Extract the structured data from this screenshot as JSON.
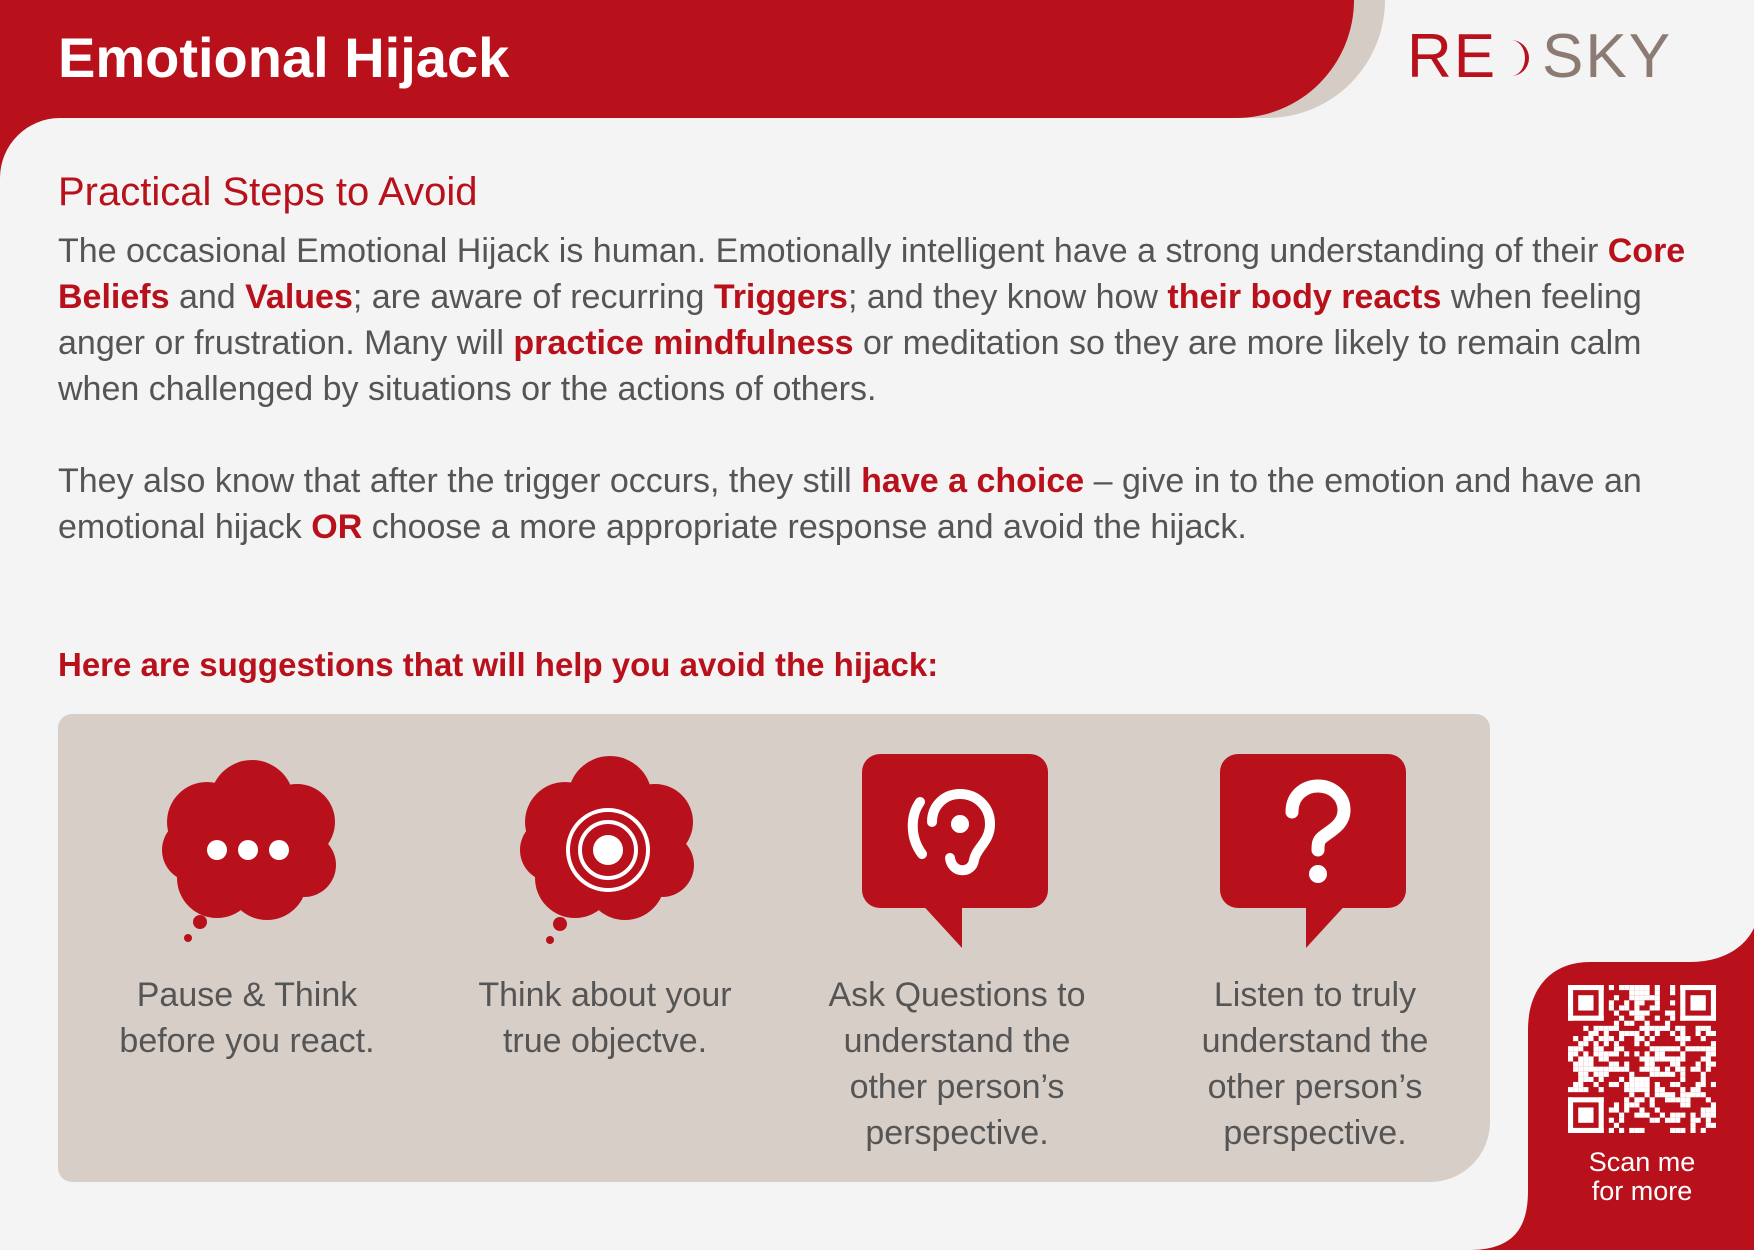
{
  "header": {
    "title": "Emotional Hijack",
    "logo": {
      "part_red": "RE",
      "part_grey": "SKY"
    }
  },
  "section": {
    "title": "Practical Steps to Avoid"
  },
  "paragraph1": {
    "t1": "The occasional Emotional Hijack is human. Emotionally intelligent have a strong understanding of their ",
    "h1": "Core Beliefs",
    "t2": " and ",
    "h2": "Values",
    "t3": "; are aware of recurring ",
    "h3": "Triggers",
    "t4": "; and they know how ",
    "h4": "their body reacts",
    "t5": " when feeling anger or frustration. Many will ",
    "h5": "practice mindfulness",
    "t6": " or meditation so they are more likely to remain calm when challenged by situations or the actions of others."
  },
  "paragraph2": {
    "t1": "They also know that after the trigger occurs, they still ",
    "h1": "have a choice",
    "t2": " – give in to the emotion and have an emotional hijack ",
    "h2": "OR",
    "t3": " choose a more appropriate response and avoid the hijack."
  },
  "suggestions": {
    "heading": "Here are suggestions that will help you avoid the hijack:",
    "items": [
      {
        "icon": "thought-bubble-dots-icon",
        "label_line1": "Pause & Think",
        "label_line2": "before you react."
      },
      {
        "icon": "thought-bubble-target-icon",
        "label_line1": "Think about your",
        "label_line2": "true objectve."
      },
      {
        "icon": "speech-bubble-ear-icon",
        "label_line1": "Ask Questions to",
        "label_line2": "understand the",
        "label_line3": "other person’s",
        "label_line4": "perspective."
      },
      {
        "icon": "speech-bubble-question-icon",
        "label_line1": "Listen to truly",
        "label_line2": "understand the",
        "label_line3": "other person’s",
        "label_line4": "perspective."
      }
    ]
  },
  "qr": {
    "label_line1": "Scan me",
    "label_line2": "for more"
  },
  "colors": {
    "brand_red": "#b8111c",
    "brand_grey": "#8b7b73",
    "panel": "#d8cec8",
    "background": "#f4f4f4"
  }
}
